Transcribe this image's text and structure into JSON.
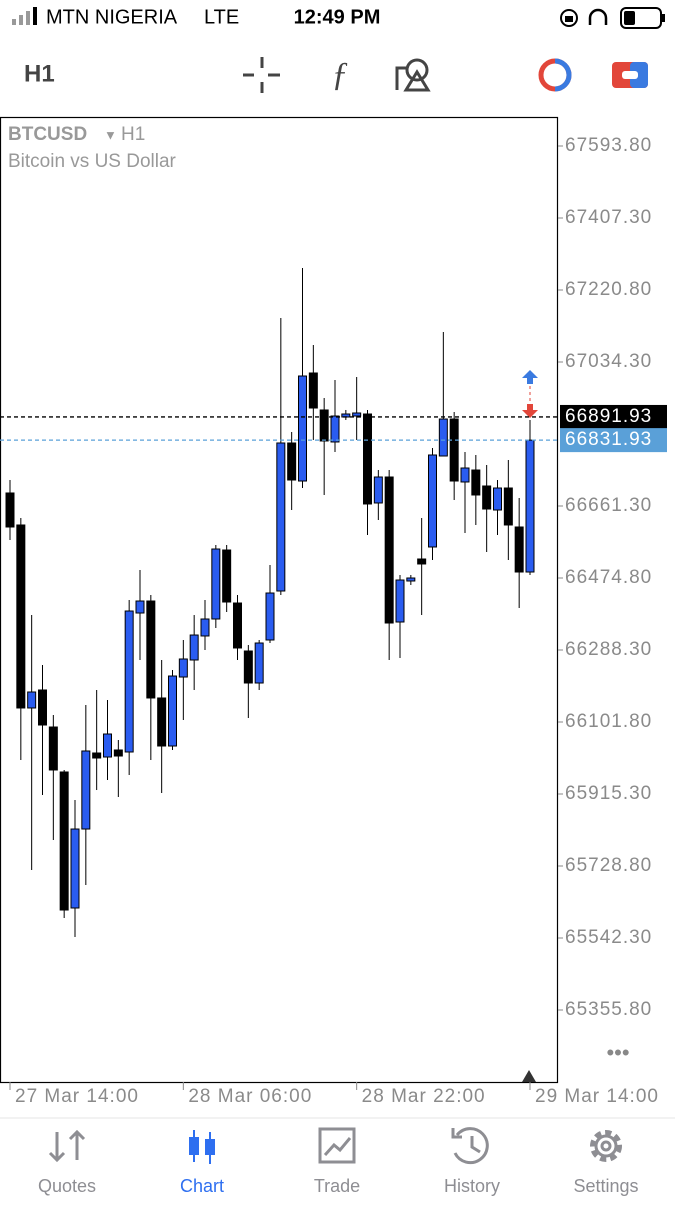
{
  "status_bar": {
    "carrier": "MTN NIGERIA",
    "network": "LTE",
    "time": "12:49 PM"
  },
  "toolbar": {
    "timeframe": "H1"
  },
  "chart_data": {
    "type": "candlestick",
    "title": "BTCUSD",
    "timeframe": "H1",
    "subtitle": "Bitcoin vs US Dollar",
    "categories": [
      "27 Mar 14:00",
      null,
      null,
      null,
      null,
      null,
      null,
      null,
      null,
      null,
      null,
      null,
      null,
      null,
      null,
      null,
      "28 Mar 06:00",
      null,
      null,
      null,
      null,
      null,
      null,
      null,
      null,
      null,
      null,
      null,
      null,
      null,
      null,
      null,
      "28 Mar 22:00",
      null,
      null,
      null,
      null,
      null,
      null,
      null,
      null,
      null,
      null,
      null,
      null,
      null,
      null,
      null,
      "29 Mar 14:00"
    ],
    "open": [
      66695.0,
      66612.1,
      66138.1,
      66184.7,
      66088.8,
      65972.3,
      65620.0,
      65824.6,
      66021.5,
      66011.1,
      66029.3,
      66024.1,
      66384.1,
      66415.2,
      66164.0,
      66039.6,
      66218.3,
      66262.4,
      66324.6,
      66368.6,
      66547.3,
      66410.0,
      66285.7,
      66202.8,
      66314.2,
      66441.1,
      66824.5,
      66726.0,
      67005.8,
      66910.0,
      66827.1,
      66891.8,
      66894.4,
      66899.6,
      66669.1,
      66736.4,
      66360.8,
      66467.0,
      66524.0,
      66555.1,
      66790.8,
      66886.6,
      66723.5,
      66754.5,
      66713.1,
      66650.9,
      66707.9,
      66606.9,
      66490.3
    ],
    "high": [
      66728.6,
      66630.2,
      66378.9,
      66249.4,
      66119.9,
      65977.5,
      65899.7,
      66145.8,
      66184.7,
      66158.8,
      66055.2,
      66417.8,
      66495.5,
      66430.8,
      66262.4,
      66236.5,
      66314.2,
      66378.9,
      66417.8,
      66560.3,
      66560.3,
      66430.8,
      66301.2,
      66314.2,
      66508.5,
      67148.3,
      66853.0,
      67277.8,
      67078.3,
      66941.0,
      66987.7,
      66910.0,
      66995.4,
      66910.0,
      66754.5,
      66754.5,
      66482.6,
      66482.6,
      66630.2,
      66811.5,
      67112.0,
      66904.8,
      66801.2,
      66793.4,
      66767.5,
      66728.6,
      66780.4,
      66682.0,
      66884.1
    ],
    "low": [
      66573.2,
      66003.4,
      65718.4,
      65912.7,
      65796.1,
      65594.1,
      65544.9,
      65679.6,
      65925.6,
      65951.5,
      65907.5,
      65964.5,
      66262.4,
      66003.4,
      65917.9,
      66029.3,
      66107.0,
      66184.7,
      66288.3,
      66345.3,
      66386.7,
      66262.4,
      66112.1,
      66184.7,
      66306.4,
      66430.8,
      66650.9,
      66707.9,
      66832.3,
      66689.8,
      66801.2,
      66884.1,
      66832.3,
      66586.2,
      66625.0,
      66262.4,
      66267.6,
      66456.7,
      66378.9,
      66521.4,
      66790.8,
      66676.8,
      66591.4,
      66612.1,
      66542.1,
      66586.2,
      66521.4,
      66397.1,
      66482.6
    ],
    "close": [
      66606.9,
      66138.1,
      66179.5,
      66094.0,
      65977.5,
      65614.8,
      65824.6,
      66026.7,
      66008.5,
      66070.7,
      66013.7,
      66389.3,
      66415.2,
      66164.0,
      66039.6,
      66220.9,
      66265.0,
      66327.1,
      66368.6,
      66549.9,
      66412.6,
      66293.5,
      66202.8,
      66306.4,
      66435.9,
      66824.5,
      66728.6,
      66998.0,
      66915.1,
      66829.7,
      66894.4,
      66899.6,
      66902.2,
      66666.5,
      66736.4,
      66358.2,
      66469.6,
      66474.8,
      66511.1,
      66793.4,
      66886.6,
      66726.0,
      66759.7,
      66689.8,
      66653.5,
      66707.9,
      66612.1,
      66490.3,
      66831.9
    ],
    "up_color": "#2a5cf0",
    "down_color": "#000000",
    "ylim": [
      65169.3,
      67666.3
    ],
    "yticks": [
      {
        "value": 67593.8,
        "label": "67593.80"
      },
      {
        "value": 67407.3,
        "label": "67407.30"
      },
      {
        "value": 67220.8,
        "label": "67220.80"
      },
      {
        "value": 67034.3,
        "label": "67034.30"
      },
      {
        "value": 66661.3,
        "label": "66661.30"
      },
      {
        "value": 66474.8,
        "label": "66474.80"
      },
      {
        "value": 66288.3,
        "label": "66288.30"
      },
      {
        "value": 66101.8,
        "label": "66101.80"
      },
      {
        "value": 65915.3,
        "label": "65915.30"
      },
      {
        "value": 65728.8,
        "label": "65728.80"
      },
      {
        "value": 65542.3,
        "label": "65542.30"
      },
      {
        "value": 65355.8,
        "label": "65355.80"
      }
    ],
    "price_lines": [
      {
        "value": 66891.93,
        "color": "#000000"
      },
      {
        "value": 66831.93,
        "color": "#5aa0d8"
      }
    ]
  },
  "tabs": [
    {
      "label": "Quotes",
      "active": false
    },
    {
      "label": "Chart",
      "active": true
    },
    {
      "label": "Trade",
      "active": false
    },
    {
      "label": "History",
      "active": false
    },
    {
      "label": "Settings",
      "active": false
    }
  ]
}
